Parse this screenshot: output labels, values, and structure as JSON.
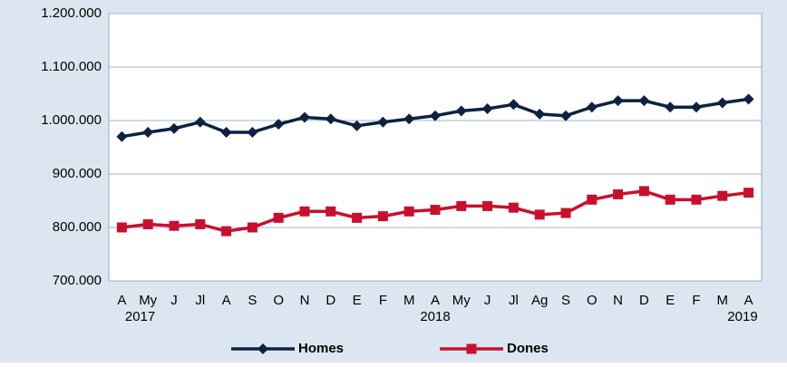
{
  "chart_data": {
    "type": "line",
    "categories": [
      "A",
      "My",
      "J",
      "Jl",
      "A",
      "S",
      "O",
      "N",
      "D",
      "E",
      "F",
      "M",
      "A",
      "My",
      "J",
      "Jl",
      "Ag",
      "S",
      "O",
      "N",
      "D",
      "E",
      "F",
      "M",
      "A"
    ],
    "years": [
      "2017",
      null,
      null,
      null,
      null,
      null,
      null,
      null,
      null,
      null,
      null,
      null,
      "2018",
      null,
      null,
      null,
      null,
      null,
      null,
      null,
      null,
      null,
      null,
      null,
      "2019"
    ],
    "series": [
      {
        "name": "Homes",
        "color": "#0d2240",
        "marker": "diamond",
        "values": [
          970000,
          978000,
          985000,
          997000,
          978000,
          978000,
          993000,
          1006000,
          1003000,
          990000,
          997000,
          1003000,
          1009000,
          1018000,
          1022000,
          1030000,
          1012000,
          1009000,
          1025000,
          1037000,
          1037000,
          1025000,
          1025000,
          1033000,
          1040000
        ]
      },
      {
        "name": "Dones",
        "color": "#c8102e",
        "marker": "square",
        "values": [
          800000,
          806000,
          803000,
          806000,
          793000,
          800000,
          818000,
          830000,
          830000,
          818000,
          821000,
          830000,
          833000,
          840000,
          840000,
          837000,
          824000,
          827000,
          852000,
          862000,
          868000,
          852000,
          852000,
          859000,
          865000
        ]
      }
    ],
    "ylim": [
      700000,
      1200000
    ],
    "yticks": [
      {
        "value": 700000,
        "label": "700.000"
      },
      {
        "value": 800000,
        "label": "800.000"
      },
      {
        "value": 900000,
        "label": "900.000"
      },
      {
        "value": 1000000,
        "label": "1.000.000"
      },
      {
        "value": 1100000,
        "label": "1.100.000"
      },
      {
        "value": 1200000,
        "label": "1.200.000"
      }
    ],
    "grid": true,
    "legend": "bottom"
  }
}
